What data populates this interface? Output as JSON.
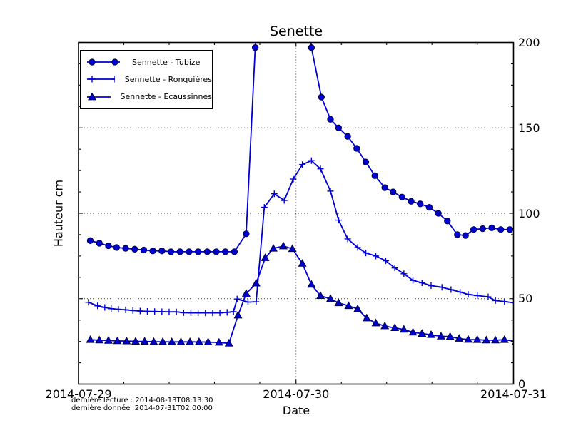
{
  "title": "Senette",
  "annotations": [
    "dernière lecture : 2014-08-13T08:13:30",
    "dernière donnée  2014-07-31T02:00:00"
  ],
  "colors": {
    "series_blue": "#0000d2",
    "marker_edge": "#000030",
    "axis": "#000000",
    "grid": "#444444",
    "background": "#ffffff"
  },
  "chart_data": {
    "type": "line",
    "title": "Senette",
    "xlabel": "Date",
    "ylabel": "Hauteur cm",
    "x_unit": "hours since 2014-07-29T00:00",
    "xlim_hours": [
      0,
      48
    ],
    "ylim": [
      0,
      200
    ],
    "grid": "dotted at y=50,100,150 and x=2014-07-30",
    "legend_position": "upper left",
    "x_major_ticks": [
      {
        "hour": 0,
        "label": "2014-07-29"
      },
      {
        "hour": 24,
        "label": "2014-07-30"
      },
      {
        "hour": 48,
        "label": "2014-07-31"
      }
    ],
    "x_minor_tick_hours": [
      5,
      10,
      15,
      20,
      29,
      34,
      39,
      44
    ],
    "y_major_ticks": [
      0,
      50,
      100,
      150,
      200
    ],
    "y_minor_step": 12.5,
    "grid_y_values": [
      50,
      100,
      150
    ],
    "grid_x_hours": [
      24
    ],
    "note": "Tubize peak between hours 20-25 exceeds 200 cm and is clipped at the plot top",
    "series": [
      {
        "name": "Sennette - Tubize",
        "marker": "circle",
        "points": [
          [
            1.3,
            84
          ],
          [
            2.3,
            82.5
          ],
          [
            3.3,
            81
          ],
          [
            4.2,
            80
          ],
          [
            5.2,
            79.5
          ],
          [
            6.2,
            79
          ],
          [
            7.2,
            78.5
          ],
          [
            8.2,
            78
          ],
          [
            9.2,
            78
          ],
          [
            10.2,
            77.5
          ],
          [
            11.2,
            77.5
          ],
          [
            12.2,
            77.5
          ],
          [
            13.2,
            77.5
          ],
          [
            14.2,
            77.5
          ],
          [
            15.2,
            77.5
          ],
          [
            16.2,
            77.5
          ],
          [
            17.2,
            77.5
          ],
          [
            18.5,
            88
          ],
          [
            19.5,
            197
          ],
          [
            20.3,
            250
          ],
          [
            25,
            250
          ],
          [
            25.7,
            197
          ],
          [
            26.8,
            168
          ],
          [
            27.8,
            155
          ],
          [
            28.7,
            150
          ],
          [
            29.7,
            145
          ],
          [
            30.7,
            138
          ],
          [
            31.7,
            130
          ],
          [
            32.7,
            122
          ],
          [
            33.8,
            115
          ],
          [
            34.7,
            112.5
          ],
          [
            35.7,
            109.5
          ],
          [
            36.7,
            107
          ],
          [
            37.7,
            105.5
          ],
          [
            38.7,
            103.5
          ],
          [
            39.7,
            100
          ],
          [
            40.7,
            95.5
          ],
          [
            41.8,
            87.5
          ],
          [
            42.7,
            87
          ],
          [
            43.6,
            90.5
          ],
          [
            44.6,
            91
          ],
          [
            45.6,
            91.5
          ],
          [
            46.6,
            90.5
          ],
          [
            47.6,
            90.5
          ],
          [
            48.3,
            90.5
          ]
        ]
      },
      {
        "name": "Sennette - Ronquières",
        "marker": "plus",
        "points": [
          [
            1.1,
            47.9
          ],
          [
            2.1,
            45.8
          ],
          [
            2.9,
            44.9
          ],
          [
            3.6,
            44.2
          ],
          [
            4.4,
            43.8
          ],
          [
            5.2,
            43.5
          ],
          [
            6,
            43.1
          ],
          [
            6.8,
            42.8
          ],
          [
            7.6,
            42.6
          ],
          [
            8.4,
            42.5
          ],
          [
            9.2,
            42.4
          ],
          [
            10,
            42.3
          ],
          [
            10.8,
            42.3
          ],
          [
            11.6,
            41.8
          ],
          [
            12.4,
            41.7
          ],
          [
            13.2,
            41.7
          ],
          [
            14,
            41.7
          ],
          [
            14.8,
            41.7
          ],
          [
            15.6,
            41.7
          ],
          [
            16.4,
            42
          ],
          [
            17.1,
            42.4
          ],
          [
            17.5,
            49.8
          ],
          [
            18.7,
            48
          ],
          [
            19.6,
            48.2
          ],
          [
            20.5,
            103.5
          ],
          [
            21.6,
            111.4
          ],
          [
            22.7,
            107.5
          ],
          [
            23.7,
            120
          ],
          [
            24.7,
            128.5
          ],
          [
            25.7,
            130.8
          ],
          [
            26.7,
            126
          ],
          [
            27.8,
            113
          ],
          [
            28.7,
            96
          ],
          [
            29.7,
            85
          ],
          [
            30.8,
            80
          ],
          [
            31.7,
            76.8
          ],
          [
            32.8,
            75
          ],
          [
            33.9,
            72.2
          ],
          [
            34.9,
            68
          ],
          [
            35.9,
            64.6
          ],
          [
            36.9,
            60.7
          ],
          [
            37.9,
            59.3
          ],
          [
            38.9,
            57.6
          ],
          [
            40.1,
            56.7
          ],
          [
            41.1,
            55.3
          ],
          [
            42.1,
            53.9
          ],
          [
            43,
            52.5
          ],
          [
            44,
            51.8
          ],
          [
            45.2,
            51.1
          ],
          [
            46,
            48.9
          ],
          [
            47,
            48.3
          ],
          [
            48.3,
            47.4
          ]
        ]
      },
      {
        "name": "Sennette - Ecaussinnes",
        "marker": "triangle",
        "points": [
          [
            1.3,
            26
          ],
          [
            2.3,
            25.7
          ],
          [
            3.3,
            25.5
          ],
          [
            4.3,
            25.3
          ],
          [
            5.3,
            25.2
          ],
          [
            6.3,
            25
          ],
          [
            7.3,
            25
          ],
          [
            8.3,
            24.8
          ],
          [
            9.3,
            24.8
          ],
          [
            10.3,
            24.7
          ],
          [
            11.3,
            24.7
          ],
          [
            12.3,
            24.7
          ],
          [
            13.3,
            24.7
          ],
          [
            14.3,
            24.6
          ],
          [
            15.5,
            24.4
          ],
          [
            16.6,
            23.9
          ],
          [
            17.6,
            40.3
          ],
          [
            18.5,
            53
          ],
          [
            19.6,
            59
          ],
          [
            20.6,
            73.9
          ],
          [
            21.5,
            79.4
          ],
          [
            22.6,
            80.8
          ],
          [
            23.6,
            79.2
          ],
          [
            24.7,
            70.6
          ],
          [
            25.7,
            58.3
          ],
          [
            26.7,
            51.7
          ],
          [
            27.8,
            50
          ],
          [
            28.7,
            47.5
          ],
          [
            29.8,
            45.8
          ],
          [
            30.8,
            44
          ],
          [
            31.8,
            38.6
          ],
          [
            32.8,
            35.7
          ],
          [
            33.8,
            34
          ],
          [
            34.9,
            32.9
          ],
          [
            35.9,
            32
          ],
          [
            36.9,
            30.3
          ],
          [
            37.9,
            29.6
          ],
          [
            38.9,
            28.9
          ],
          [
            40,
            28
          ],
          [
            41,
            27.8
          ],
          [
            42,
            26.7
          ],
          [
            43,
            26.1
          ],
          [
            44,
            26
          ],
          [
            45,
            25.7
          ],
          [
            46,
            25.7
          ],
          [
            47,
            26
          ],
          [
            48.3,
            25
          ]
        ]
      }
    ]
  }
}
